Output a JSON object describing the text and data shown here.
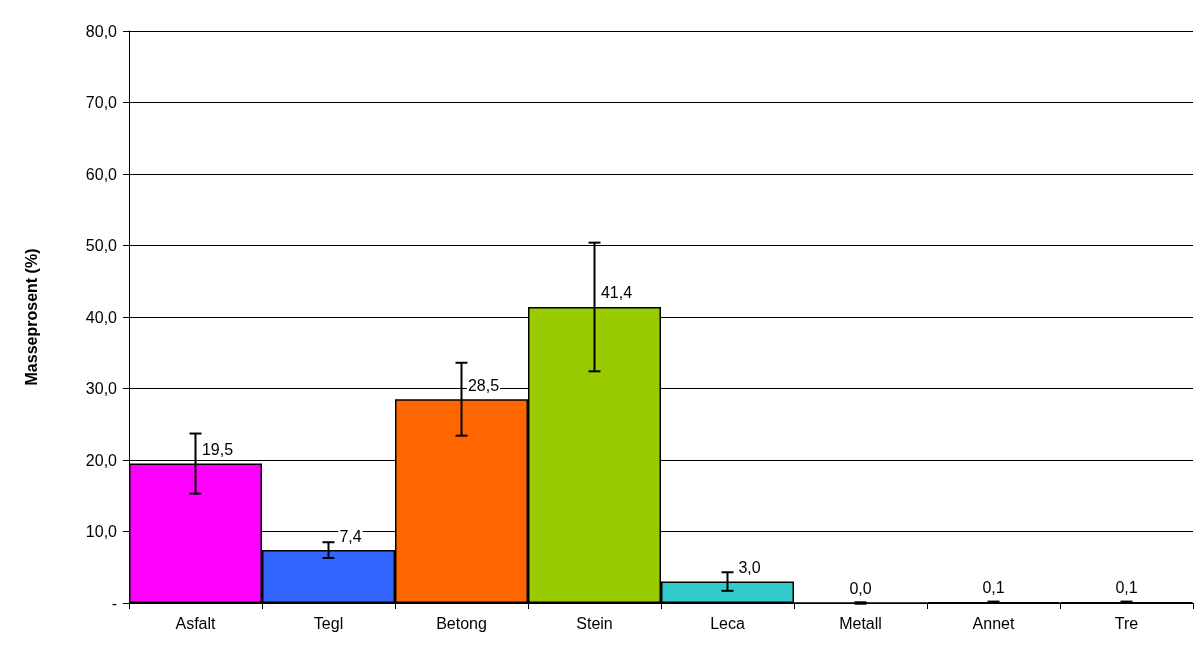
{
  "chart_data": {
    "type": "bar",
    "ylabel": "Masseprosent (%)",
    "categories": [
      "Asfalt",
      "Tegl",
      "Betong",
      "Stein",
      "Leca",
      "Metall",
      "Annet",
      "Tre"
    ],
    "values": [
      19.5,
      7.4,
      28.5,
      41.4,
      3.0,
      0.0,
      0.1,
      0.1
    ],
    "errors": [
      4.2,
      1.1,
      5.1,
      9.0,
      1.3,
      0.1,
      0.1,
      0.1
    ],
    "colors": [
      "#ff00ff",
      "#3366ff",
      "#ff6600",
      "#99cc00",
      "#33cccc",
      "#808080",
      "#808080",
      "#808080"
    ],
    "value_labels": [
      "19,5",
      "7,4",
      "28,5",
      "41,4",
      "3,0",
      "0,0",
      "0,1",
      "0,1"
    ],
    "ylim": [
      0,
      80
    ],
    "yticks": [
      {
        "value": 0,
        "label": "-"
      },
      {
        "value": 10,
        "label": "10,0"
      },
      {
        "value": 20,
        "label": "20,0"
      },
      {
        "value": 30,
        "label": "30,0"
      },
      {
        "value": 40,
        "label": "40,0"
      },
      {
        "value": 50,
        "label": "50,0"
      },
      {
        "value": 60,
        "label": "60,0"
      },
      {
        "value": 70,
        "label": "70,0"
      },
      {
        "value": 80,
        "label": "80,0"
      }
    ],
    "grid": "y"
  }
}
